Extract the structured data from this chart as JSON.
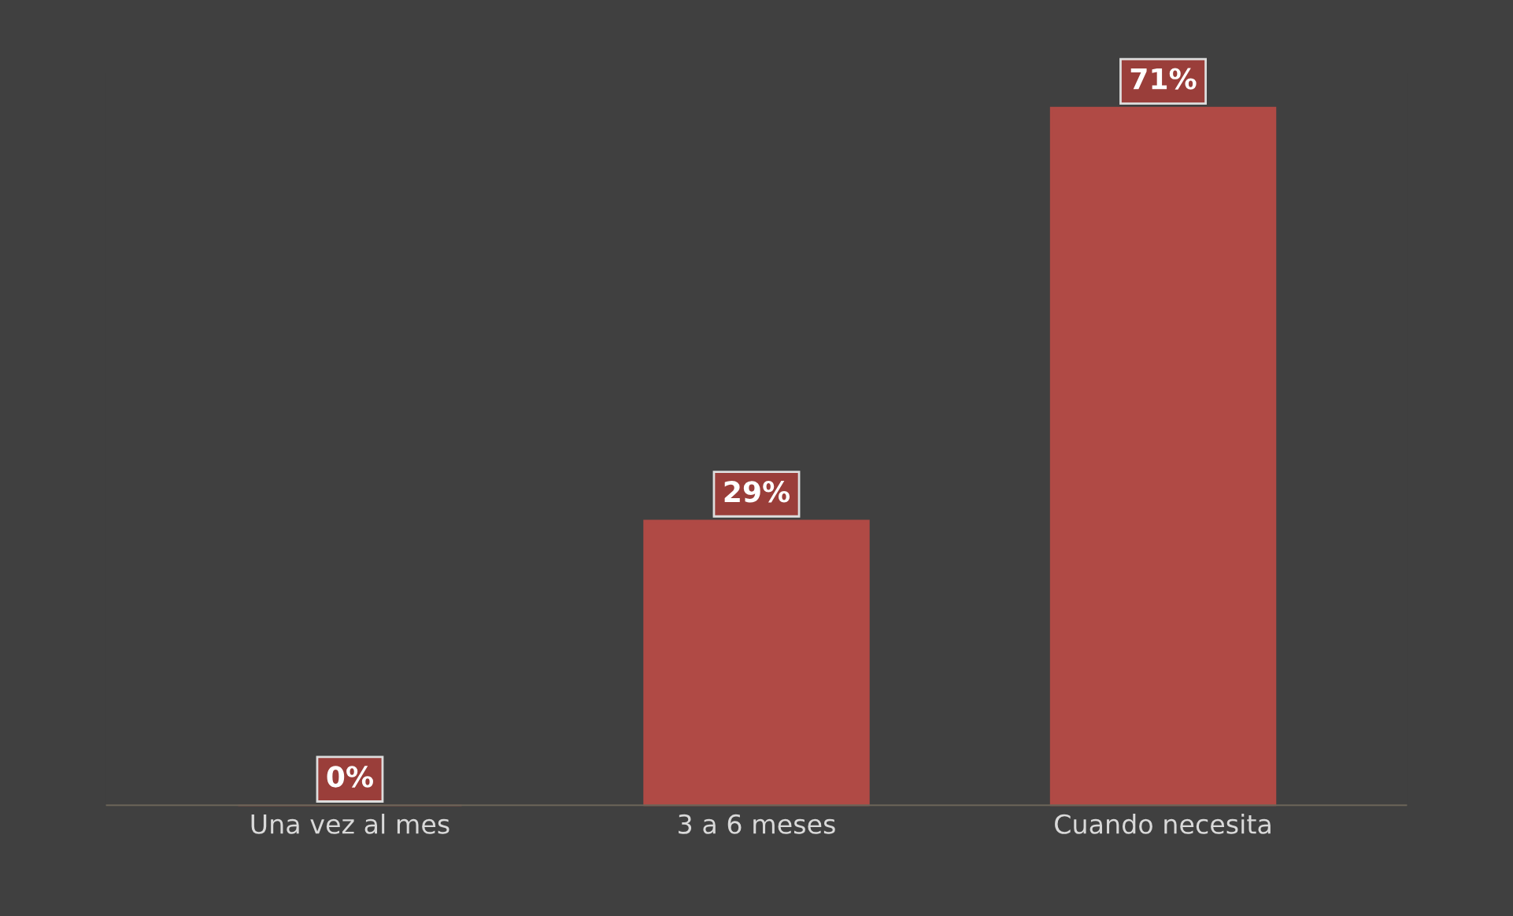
{
  "chart_data": {
    "type": "bar",
    "categories": [
      "Una vez al mes",
      "3 a 6 meses",
      "Cuando necesita"
    ],
    "values": [
      0,
      29,
      71
    ],
    "value_labels": [
      "0%",
      "29%",
      "71%"
    ],
    "color": "#b04a45",
    "grid": false,
    "tick_labels": "x"
  }
}
